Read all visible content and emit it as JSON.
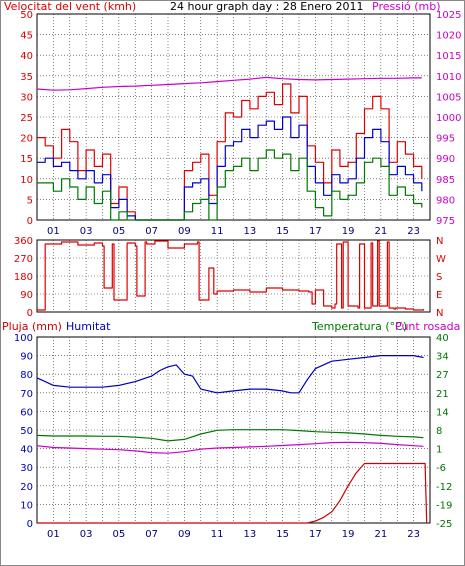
{
  "colors": {
    "wind": "#dd0000",
    "wind_avg": "#0000cc",
    "wind_low": "#007700",
    "pressure": "#cc00cc",
    "direction": "#dd0000",
    "rain": "#cc0000",
    "humidity": "#0000bb",
    "temperature": "#007700",
    "dewpoint": "#cc00cc",
    "grid": "#444444",
    "frame": "#000000"
  },
  "header": {
    "wind_title": "Velocitat del vent (kmh)",
    "chart_title": "24 hour graph day : 28 Enero 2011",
    "pressure_title": "Pressió (mb)"
  },
  "bottom_header": {
    "rain_title": "Pluja (mm)",
    "humidity_title": "Humitat",
    "temperature_title": "Temperatura (°C)",
    "dewpoint_title": "Punt rosada"
  },
  "chart_data": [
    {
      "type": "line",
      "x_ticks": [
        "01",
        "03",
        "05",
        "07",
        "09",
        "11",
        "13",
        "15",
        "17",
        "19",
        "21",
        "23"
      ],
      "x_range": [
        0,
        24
      ],
      "y_ticks": [
        "0",
        "5",
        "10",
        "15",
        "20",
        "25",
        "30",
        "35",
        "40",
        "45",
        "50"
      ],
      "ylim": [
        0,
        50
      ],
      "y2_ticks": [
        "975",
        "980",
        "985",
        "990",
        "995",
        "1000",
        "1005",
        "1010",
        "1015",
        "1020",
        "1025"
      ],
      "y2lim": [
        975,
        1025
      ],
      "grid": true,
      "series": [
        {
          "name": "Velocitat del vent (kmh)",
          "axis": "left",
          "color": "#dd0000",
          "x": [
            0,
            0.5,
            1,
            1.5,
            2,
            2.5,
            3,
            3.5,
            4,
            4.5,
            5,
            5.5,
            6,
            6.5,
            7,
            7.5,
            8,
            8.5,
            9,
            9.5,
            10,
            10.5,
            11,
            11.5,
            12,
            12.5,
            13,
            13.5,
            14,
            14.5,
            15,
            15.5,
            16,
            16.5,
            17,
            17.5,
            18,
            18.5,
            19,
            19.5,
            20,
            20.5,
            21,
            21.5,
            22,
            22.5,
            23,
            23.5
          ],
          "values": [
            20,
            18,
            15,
            22,
            19,
            12,
            17,
            13,
            16,
            4,
            8,
            2,
            0,
            0,
            0,
            0,
            0,
            0,
            12,
            14,
            16,
            6,
            19,
            26,
            25,
            29,
            27,
            30,
            31,
            28,
            33,
            26,
            30,
            18,
            14,
            9,
            17,
            13,
            14,
            21,
            27,
            30,
            27,
            14,
            19,
            16,
            13,
            10
          ]
        },
        {
          "axis": "left",
          "color": "#0000cc",
          "x": [
            0,
            0.5,
            1,
            1.5,
            2,
            2.5,
            3,
            3.5,
            4,
            4.5,
            5,
            5.5,
            6,
            6.5,
            7,
            7.5,
            8,
            8.5,
            9,
            9.5,
            10,
            10.5,
            11,
            11.5,
            12,
            12.5,
            13,
            13.5,
            14,
            14.5,
            15,
            15.5,
            16,
            16.5,
            17,
            17.5,
            18,
            18.5,
            19,
            19.5,
            20,
            20.5,
            21,
            21.5,
            22,
            22.5,
            23,
            23.5
          ],
          "values": [
            14,
            15,
            13,
            14,
            12,
            10,
            12,
            9,
            11,
            3,
            5,
            1,
            0,
            0,
            0,
            0,
            0,
            0,
            8,
            9,
            10,
            4,
            13,
            18,
            19,
            22,
            20,
            23,
            24,
            22,
            25,
            20,
            23,
            13,
            9,
            6,
            11,
            9,
            10,
            15,
            20,
            22,
            19,
            11,
            13,
            11,
            9,
            7
          ]
        },
        {
          "axis": "left",
          "color": "#007700",
          "x": [
            0,
            0.5,
            1,
            1.5,
            2,
            2.5,
            3,
            3.5,
            4,
            4.5,
            5,
            5.5,
            6,
            6.5,
            7,
            7.5,
            8,
            8.5,
            9,
            9.5,
            10,
            10.5,
            11,
            11.5,
            12,
            12.5,
            13,
            13.5,
            14,
            14.5,
            15,
            15.5,
            16,
            16.5,
            17,
            17.5,
            18,
            18.5,
            19,
            19.5,
            20,
            20.5,
            21,
            21.5,
            22,
            22.5,
            23,
            23.5
          ],
          "values": [
            9,
            9,
            7,
            10,
            8,
            5,
            8,
            4,
            7,
            0,
            2,
            0,
            0,
            0,
            0,
            0,
            0,
            0,
            2,
            4,
            5,
            0,
            8,
            12,
            13,
            15,
            12,
            15,
            17,
            15,
            16,
            12,
            15,
            7,
            3,
            1,
            7,
            5,
            6,
            9,
            14,
            15,
            13,
            6,
            8,
            6,
            4,
            3
          ]
        },
        {
          "name": "Pressió (mb)",
          "axis": "right",
          "color": "#cc00cc",
          "x": [
            0,
            1,
            2,
            3,
            4,
            5,
            6,
            7,
            8,
            9,
            10,
            11,
            12,
            13,
            14,
            15,
            16,
            17,
            18,
            19,
            20,
            21,
            22,
            23,
            23.5
          ],
          "values": [
            1006.8,
            1006.5,
            1006.6,
            1006.9,
            1007.2,
            1007.4,
            1007.5,
            1007.7,
            1007.9,
            1008.1,
            1008.3,
            1008.6,
            1008.9,
            1009.2,
            1009.6,
            1009.3,
            1009.1,
            1009.0,
            1009.1,
            1009.2,
            1009.3,
            1009.4,
            1009.4,
            1009.5,
            1009.5
          ]
        }
      ]
    },
    {
      "type": "line",
      "x_ticks": [],
      "x_range": [
        0,
        24
      ],
      "y_ticks": [
        "0",
        "90",
        "180",
        "270",
        "360"
      ],
      "ylim": [
        0,
        360
      ],
      "y2_ticks": [
        "N",
        "E",
        "S",
        "W",
        "N"
      ],
      "grid": true,
      "series": [
        {
          "color": "#dd0000",
          "x": [
            0,
            0.4,
            0.5,
            1.5,
            2.5,
            3.5,
            4.0,
            4.1,
            4.6,
            4.7,
            5.5,
            6.0,
            6.1,
            6.6,
            6.7,
            7.2,
            8.0,
            9.0,
            9.8,
            9.9,
            10.4,
            10.5,
            10.8,
            11.0,
            12.0,
            13.0,
            14.0,
            15.0,
            16.0,
            16.6,
            16.8,
            17.0,
            17.5,
            18.0,
            18.2,
            18.3,
            18.6,
            18.7,
            19.0,
            19.6,
            19.7,
            20.0,
            20.4,
            20.5,
            20.8,
            20.9,
            21.4,
            21.5,
            21.8,
            21.9,
            22.5,
            23.0,
            23.6
          ],
          "values": [
            10,
            10,
            340,
            350,
            335,
            345,
            330,
            120,
            340,
            60,
            345,
            330,
            80,
            350,
            340,
            355,
            320,
            340,
            350,
            60,
            60,
            220,
            90,
            105,
            110,
            100,
            120,
            110,
            105,
            100,
            40,
            110,
            30,
            20,
            40,
            340,
            20,
            350,
            30,
            20,
            340,
            20,
            345,
            30,
            355,
            30,
            350,
            20,
            15,
            20,
            15,
            10,
            15
          ]
        }
      ]
    },
    {
      "type": "line",
      "x_ticks": [
        "01",
        "03",
        "05",
        "07",
        "09",
        "11",
        "13",
        "15",
        "17",
        "19",
        "21",
        "23"
      ],
      "x_range": [
        0,
        24
      ],
      "y_ticks": [
        "0",
        "10",
        "20",
        "30",
        "40",
        "50",
        "60",
        "70",
        "80",
        "90",
        "100"
      ],
      "ylim": [
        0,
        100
      ],
      "y2_ticks": [
        "-25",
        "-19",
        "-12",
        "-6",
        "1",
        "8",
        "14",
        "21",
        "27",
        "34",
        "40"
      ],
      "y2lim": [
        -25,
        40
      ],
      "grid": true,
      "series": [
        {
          "name": "Pluja (mm)",
          "axis": "left",
          "color": "#cc0000",
          "x": [
            0,
            16.5,
            17.0,
            17.5,
            18.0,
            18.5,
            19.0,
            19.5,
            20.0,
            20.3,
            23.7,
            23.8
          ],
          "values": [
            0,
            0,
            1,
            3,
            6,
            12,
            20,
            27,
            32,
            32,
            32,
            0
          ]
        },
        {
          "name": "Humitat",
          "axis": "left",
          "color": "#0000bb",
          "x": [
            0,
            0.5,
            1,
            2,
            3,
            4,
            5,
            6,
            7,
            7.5,
            8,
            8.5,
            9,
            9.5,
            10,
            10.5,
            11,
            12,
            13,
            14,
            15,
            15.5,
            16,
            16.5,
            17,
            18,
            19,
            20,
            21,
            22,
            23,
            23.6
          ],
          "values": [
            78,
            76,
            74,
            73,
            73,
            73,
            74,
            76,
            79,
            82,
            84,
            85,
            80,
            79,
            72,
            71,
            70,
            71,
            72,
            72,
            71,
            70,
            70,
            77,
            83,
            87,
            88,
            89,
            90,
            90,
            90,
            89
          ]
        },
        {
          "name": "Temperatura (°C)",
          "axis": "right",
          "color": "#007700",
          "x": [
            0,
            1,
            2,
            3,
            4,
            5,
            6,
            7,
            8,
            9,
            10,
            11,
            12,
            13,
            14,
            15,
            16,
            17,
            18,
            19,
            20,
            21,
            22,
            23,
            23.6
          ],
          "values": [
            5.6,
            5.4,
            5.4,
            5.4,
            5.3,
            5.3,
            5.0,
            4.6,
            3.7,
            4.2,
            6.1,
            7.4,
            7.6,
            7.6,
            7.6,
            7.6,
            7.3,
            6.9,
            6.7,
            6.5,
            6.1,
            5.6,
            5.3,
            5.1,
            4.8
          ]
        },
        {
          "name": "Punt rosada",
          "axis": "right",
          "color": "#cc00cc",
          "x": [
            0,
            1,
            2,
            3,
            4,
            5,
            6,
            7,
            8,
            9,
            10,
            11,
            12,
            13,
            14,
            15,
            16,
            17,
            18,
            19,
            20,
            21,
            22,
            23,
            23.6
          ],
          "values": [
            2.0,
            1.4,
            1.2,
            1.0,
            0.8,
            0.6,
            0.2,
            -0.4,
            -0.6,
            -0.1,
            0.8,
            1.2,
            1.4,
            1.6,
            1.8,
            2.1,
            2.4,
            2.7,
            3.1,
            3.2,
            3.1,
            2.8,
            2.4,
            2.0,
            1.8
          ]
        }
      ]
    }
  ]
}
